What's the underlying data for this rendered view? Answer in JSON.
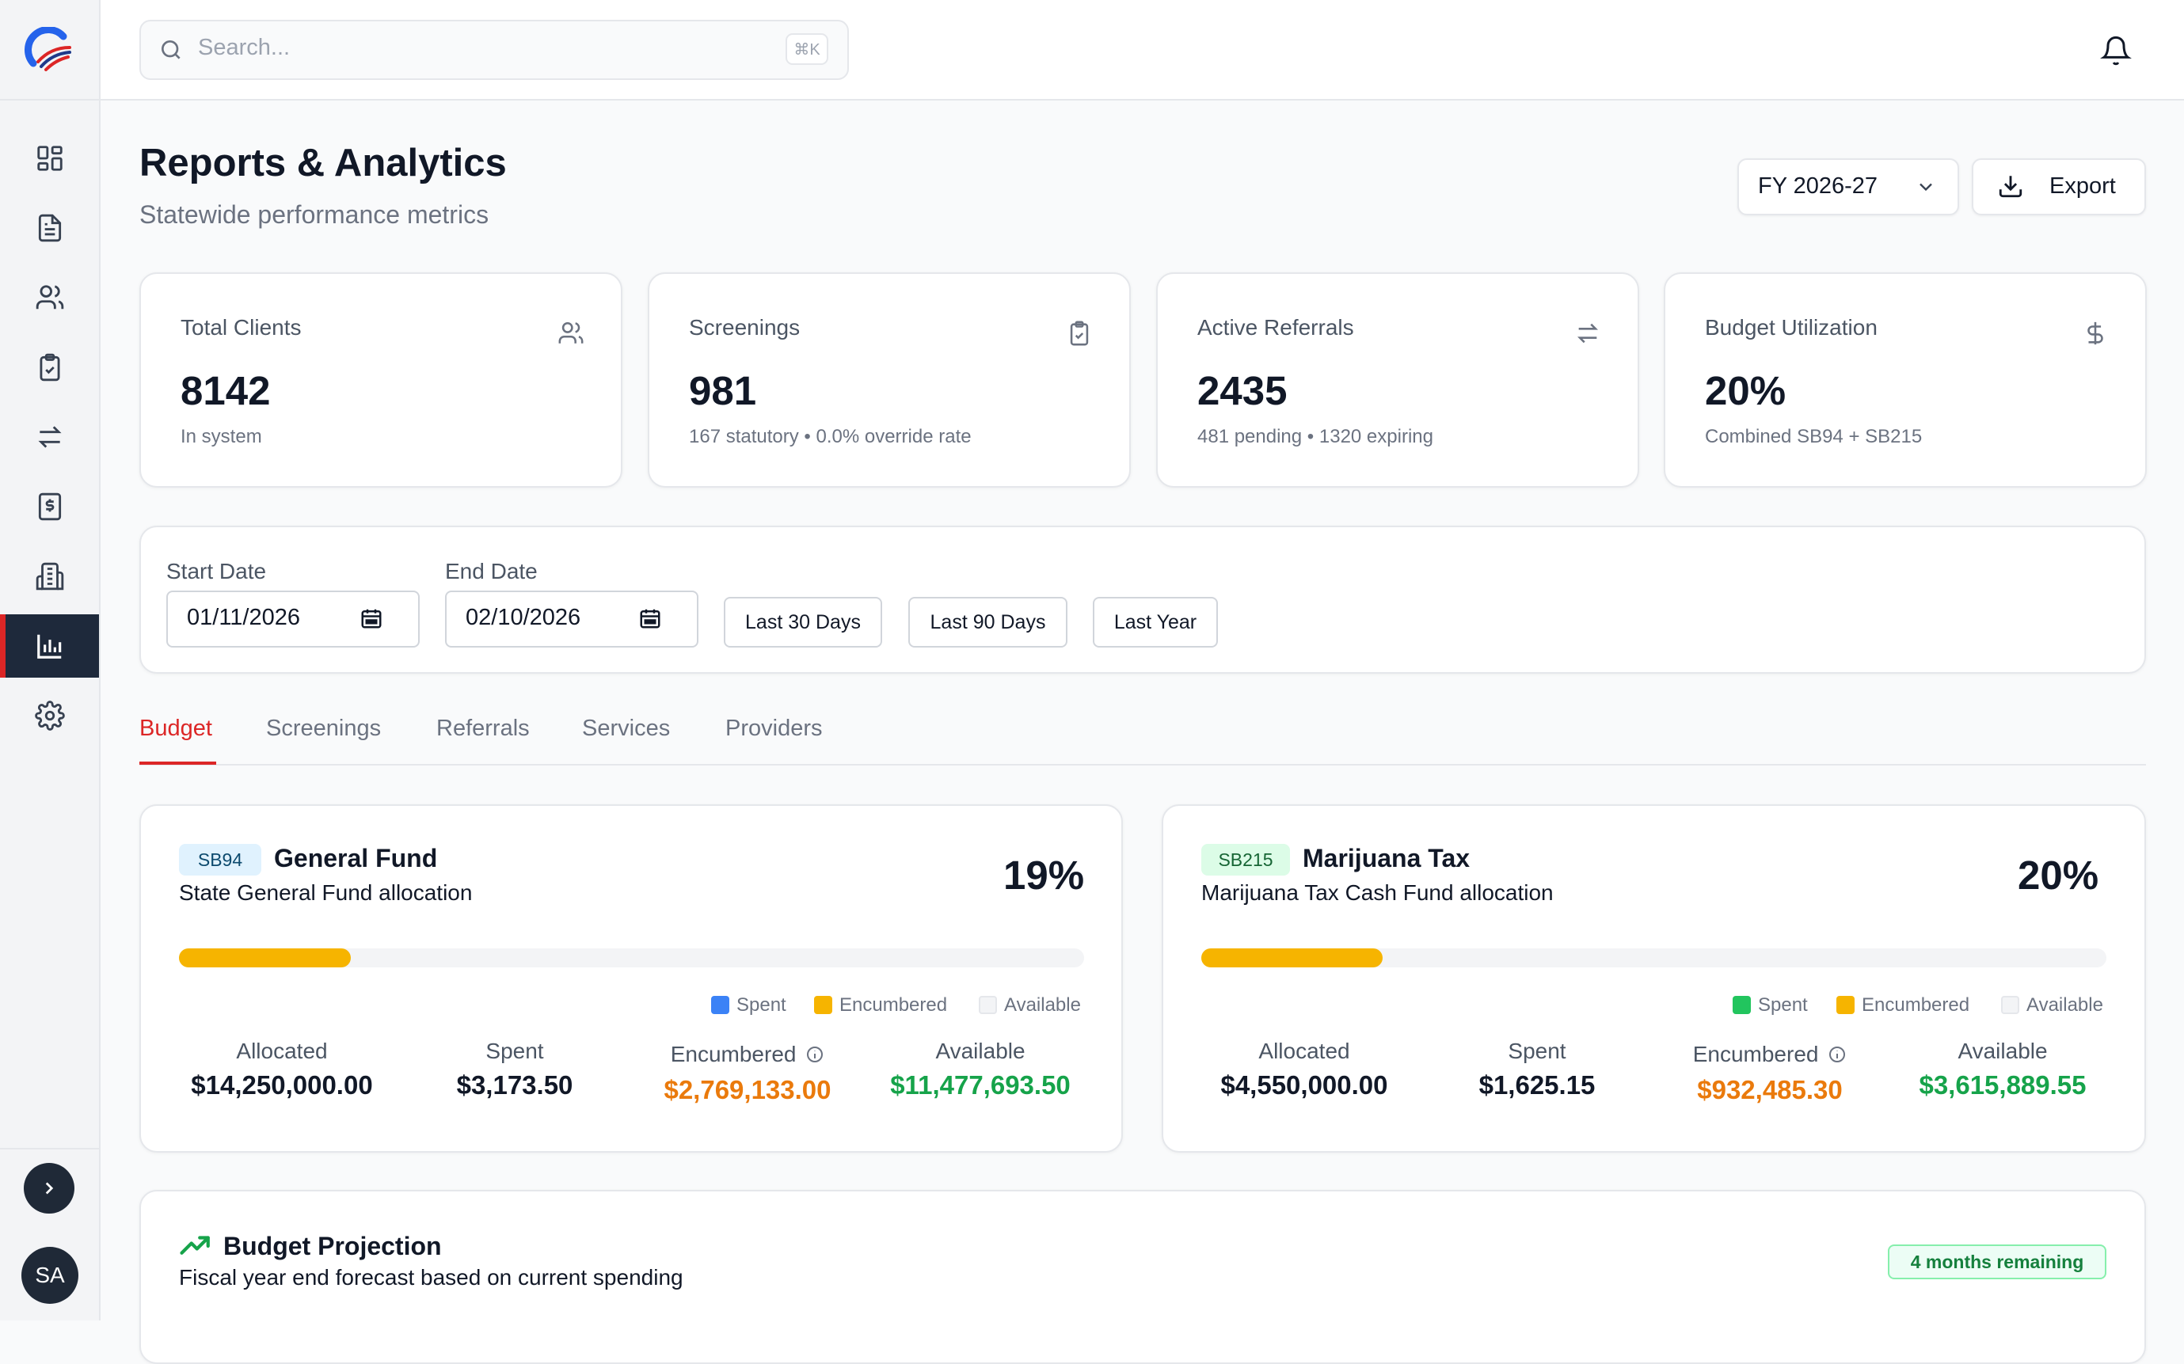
{
  "sidebar": {
    "items": [
      {
        "name": "dashboard",
        "icon": "dashboard-icon"
      },
      {
        "name": "documents",
        "icon": "document-icon"
      },
      {
        "name": "clients",
        "icon": "users-icon"
      },
      {
        "name": "screenings",
        "icon": "clipboard-check-icon"
      },
      {
        "name": "referrals",
        "icon": "arrows-swap-icon"
      },
      {
        "name": "billing",
        "icon": "receipt-dollar-icon"
      },
      {
        "name": "providers",
        "icon": "building-icon"
      },
      {
        "name": "reports",
        "icon": "bar-chart-icon",
        "active": true
      },
      {
        "name": "settings",
        "icon": "gear-icon"
      }
    ],
    "avatar_initials": "SA"
  },
  "header": {
    "search_placeholder": "Search...",
    "search_shortcut": "⌘K"
  },
  "page": {
    "title": "Reports & Analytics",
    "subtitle": "Statewide performance metrics",
    "fiscal_year": "FY 2026-27",
    "export_label": "Export"
  },
  "stats": [
    {
      "title": "Total Clients",
      "value": "8142",
      "sub": "In system",
      "icon": "users-icon"
    },
    {
      "title": "Screenings",
      "value": "981",
      "sub": "167 statutory • 0.0% override rate",
      "icon": "clipboard-check-icon"
    },
    {
      "title": "Active Referrals",
      "value": "2435",
      "sub": "481 pending • 1320 expiring",
      "icon": "arrows-swap-icon"
    },
    {
      "title": "Budget Utilization",
      "value": "20%",
      "sub": "Combined SB94 + SB215",
      "icon": "dollar-icon"
    }
  ],
  "filters": {
    "start_label": "Start Date",
    "start_value": "01/11/2026",
    "end_label": "End Date",
    "end_value": "02/10/2026",
    "quick": [
      "Last 30 Days",
      "Last 90 Days",
      "Last Year"
    ]
  },
  "tabs": [
    "Budget",
    "Screenings",
    "Referrals",
    "Services",
    "Providers"
  ],
  "active_tab": "Budget",
  "funds": [
    {
      "badge": "SB94",
      "title": "General Fund",
      "desc": "State General Fund allocation",
      "pct": "19%",
      "utilization": 0.19,
      "legend": [
        "Spent",
        "Encumbered",
        "Available"
      ],
      "spent_color": "#3b82f6",
      "labels": [
        "Allocated",
        "Spent",
        "Encumbered",
        "Available"
      ],
      "values": [
        "$14,250,000.00",
        "$3,173.50",
        "$2,769,133.00",
        "$11,477,693.50"
      ]
    },
    {
      "badge": "SB215",
      "title": "Marijuana Tax",
      "desc": "Marijuana Tax Cash Fund allocation",
      "pct": "20%",
      "utilization": 0.2,
      "legend": [
        "Spent",
        "Encumbered",
        "Available"
      ],
      "spent_color": "#22c55e",
      "labels": [
        "Allocated",
        "Spent",
        "Encumbered",
        "Available"
      ],
      "values": [
        "$4,550,000.00",
        "$1,625.15",
        "$932,485.30",
        "$3,615,889.55"
      ]
    }
  ],
  "projection": {
    "title": "Budget Projection",
    "desc": "Fiscal year end forecast based on current spending",
    "badge": "4 months remaining"
  },
  "colors": {
    "accent": "#dc2626",
    "encumbered": "#ea7a0c",
    "available": "#16a34a",
    "bar_fill": "#f6b400"
  }
}
